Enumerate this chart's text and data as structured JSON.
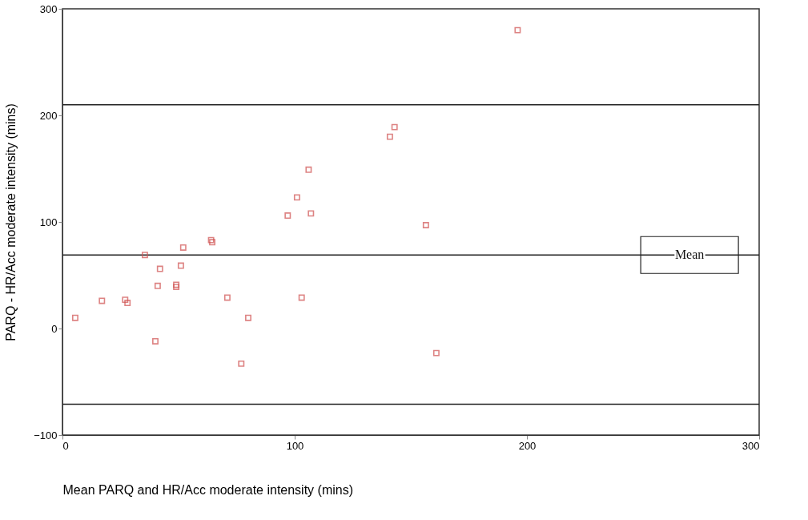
{
  "chart_data": {
    "type": "scatter",
    "xlabel": "Mean PARQ and HR/Acc moderate intensity (mins)",
    "ylabel": "PARQ - HR/Acc moderate intensity (mins)",
    "x": [
      5.5,
      17,
      27,
      28,
      35.5,
      42,
      41,
      40,
      49,
      49,
      51,
      52,
      64,
      64.5,
      71,
      77,
      80,
      97,
      101,
      103,
      106,
      107,
      141,
      143,
      156.5,
      161,
      196
    ],
    "series": [
      {
        "color": "#d0504f",
        "values": [
          10,
          26,
          27,
          24,
          69,
          56,
          40,
          -12,
          41,
          39,
          59,
          76,
          83,
          81,
          29,
          -33,
          10,
          106,
          123,
          29,
          149,
          108,
          180,
          189,
          97,
          -23,
          280
        ]
      }
    ],
    "xlim": [
      0,
      300
    ],
    "ylim": [
      -100,
      300
    ],
    "xticks": [
      0,
      100,
      200,
      300
    ],
    "yticks": [
      -100,
      0,
      100,
      200,
      300
    ],
    "ref_lines": [
      {
        "axis": "y",
        "value": 210,
        "label": null
      },
      {
        "axis": "y",
        "value": 69,
        "label": "Mean"
      },
      {
        "axis": "y",
        "value": -71,
        "label": null
      }
    ],
    "marker": "square",
    "grid": false,
    "legend": false
  }
}
